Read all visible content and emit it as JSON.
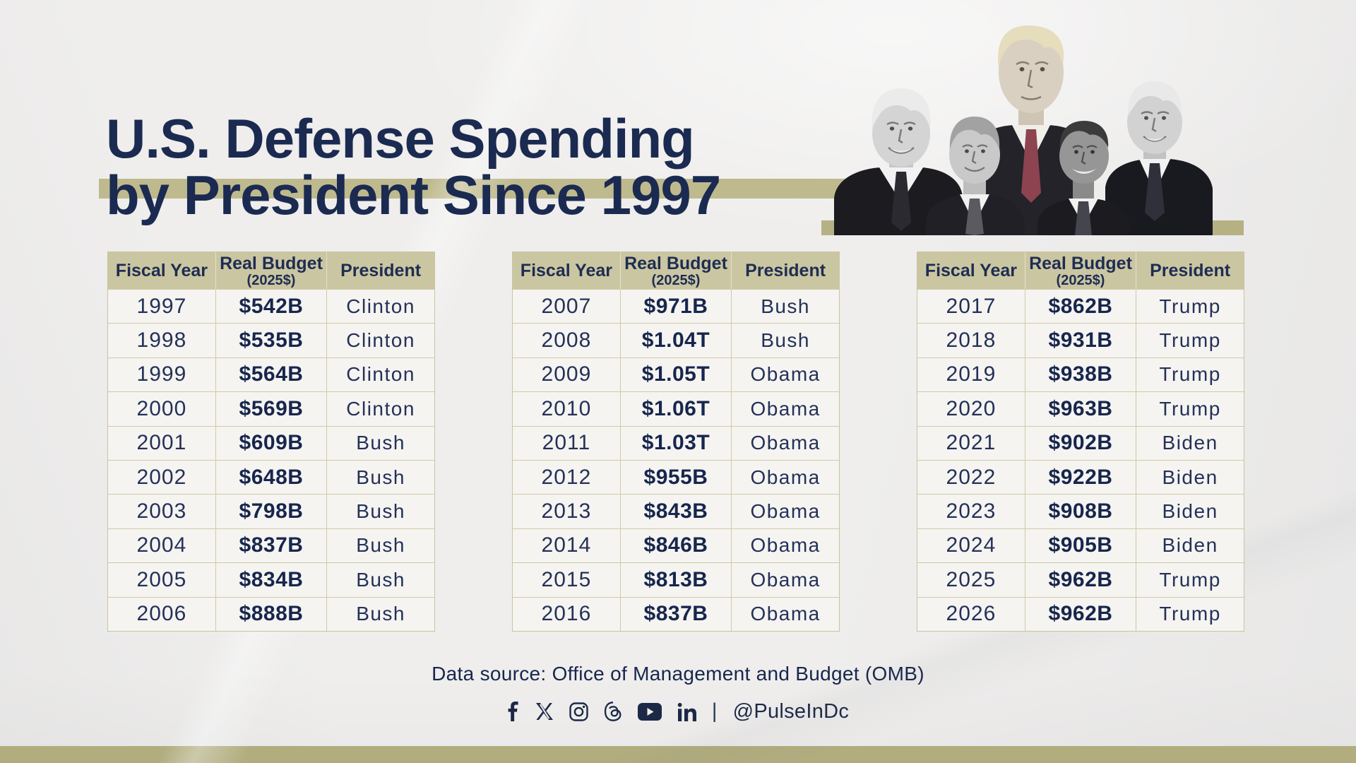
{
  "title": {
    "line1": "U.S. Defense Spending",
    "line2": "by President Since 1997"
  },
  "table_headers": {
    "fiscal_year": "Fiscal Year",
    "real_budget": "Real Budget",
    "real_budget_note": "(2025$)",
    "president": "President"
  },
  "tables": [
    {
      "rows": [
        {
          "year": "1997",
          "budget": "$542B",
          "president": "Clinton"
        },
        {
          "year": "1998",
          "budget": "$535B",
          "president": "Clinton"
        },
        {
          "year": "1999",
          "budget": "$564B",
          "president": "Clinton"
        },
        {
          "year": "2000",
          "budget": "$569B",
          "president": "Clinton"
        },
        {
          "year": "2001",
          "budget": "$609B",
          "president": "Bush"
        },
        {
          "year": "2002",
          "budget": "$648B",
          "president": "Bush"
        },
        {
          "year": "2003",
          "budget": "$798B",
          "president": "Bush"
        },
        {
          "year": "2004",
          "budget": "$837B",
          "president": "Bush"
        },
        {
          "year": "2005",
          "budget": "$834B",
          "president": "Bush"
        },
        {
          "year": "2006",
          "budget": "$888B",
          "president": "Bush"
        }
      ]
    },
    {
      "rows": [
        {
          "year": "2007",
          "budget": "$971B",
          "president": "Bush"
        },
        {
          "year": "2008",
          "budget": "$1.04T",
          "president": "Bush"
        },
        {
          "year": "2009",
          "budget": "$1.05T",
          "president": "Obama"
        },
        {
          "year": "2010",
          "budget": "$1.06T",
          "president": "Obama"
        },
        {
          "year": "2011",
          "budget": "$1.03T",
          "president": "Obama"
        },
        {
          "year": "2012",
          "budget": "$955B",
          "president": "Obama"
        },
        {
          "year": "2013",
          "budget": "$843B",
          "president": "Obama"
        },
        {
          "year": "2014",
          "budget": "$846B",
          "president": "Obama"
        },
        {
          "year": "2015",
          "budget": "$813B",
          "president": "Obama"
        },
        {
          "year": "2016",
          "budget": "$837B",
          "president": "Obama"
        }
      ]
    },
    {
      "rows": [
        {
          "year": "2017",
          "budget": "$862B",
          "president": "Trump"
        },
        {
          "year": "2018",
          "budget": "$931B",
          "president": "Trump"
        },
        {
          "year": "2019",
          "budget": "$938B",
          "president": "Trump"
        },
        {
          "year": "2020",
          "budget": "$963B",
          "president": "Trump"
        },
        {
          "year": "2021",
          "budget": "$902B",
          "president": "Biden"
        },
        {
          "year": "2022",
          "budget": "$922B",
          "president": "Biden"
        },
        {
          "year": "2023",
          "budget": "$908B",
          "president": "Biden"
        },
        {
          "year": "2024",
          "budget": "$905B",
          "president": "Biden"
        },
        {
          "year": "2025",
          "budget": "$962B",
          "president": "Trump"
        },
        {
          "year": "2026",
          "budget": "$962B",
          "president": "Trump"
        }
      ]
    }
  ],
  "footer": {
    "source": "Data source: Office of Management and Budget (OMB)",
    "separator": "|",
    "handle": "@PulseInDc"
  },
  "social_icons": [
    "facebook",
    "x",
    "instagram",
    "threads",
    "youtube",
    "linkedin"
  ],
  "presidents_pictured": [
    "Clinton",
    "Bush",
    "Trump",
    "Obama",
    "Biden"
  ],
  "colors": {
    "navy_text": "#1b2a50",
    "khaki_header": "#cbc6a2",
    "khaki_band": "#bfba8e",
    "khaki_pres_band": "#b5b183",
    "khaki_bottom_strip": "#b1ad7f",
    "row_bg": "#f5f4f1",
    "paper_bg": "#efeeed"
  },
  "chart_data": {
    "type": "table",
    "title": "U.S. Defense Spending by President Since 1997",
    "columns": [
      "Fiscal Year",
      "Real Budget (2025$)",
      "President"
    ],
    "rows": [
      [
        1997,
        "$542B",
        "Clinton"
      ],
      [
        1998,
        "$535B",
        "Clinton"
      ],
      [
        1999,
        "$564B",
        "Clinton"
      ],
      [
        2000,
        "$569B",
        "Clinton"
      ],
      [
        2001,
        "$609B",
        "Bush"
      ],
      [
        2002,
        "$648B",
        "Bush"
      ],
      [
        2003,
        "$798B",
        "Bush"
      ],
      [
        2004,
        "$837B",
        "Bush"
      ],
      [
        2005,
        "$834B",
        "Bush"
      ],
      [
        2006,
        "$888B",
        "Bush"
      ],
      [
        2007,
        "$971B",
        "Bush"
      ],
      [
        2008,
        "$1.04T",
        "Bush"
      ],
      [
        2009,
        "$1.05T",
        "Obama"
      ],
      [
        2010,
        "$1.06T",
        "Obama"
      ],
      [
        2011,
        "$1.03T",
        "Obama"
      ],
      [
        2012,
        "$955B",
        "Obama"
      ],
      [
        2013,
        "$843B",
        "Obama"
      ],
      [
        2014,
        "$846B",
        "Obama"
      ],
      [
        2015,
        "$813B",
        "Obama"
      ],
      [
        2016,
        "$837B",
        "Obama"
      ],
      [
        2017,
        "$862B",
        "Trump"
      ],
      [
        2018,
        "$931B",
        "Trump"
      ],
      [
        2019,
        "$938B",
        "Trump"
      ],
      [
        2020,
        "$963B",
        "Trump"
      ],
      [
        2021,
        "$902B",
        "Biden"
      ],
      [
        2022,
        "$922B",
        "Biden"
      ],
      [
        2023,
        "$908B",
        "Biden"
      ],
      [
        2024,
        "$905B",
        "Biden"
      ],
      [
        2025,
        "$962B",
        "Trump"
      ],
      [
        2026,
        "$962B",
        "Trump"
      ]
    ],
    "source": "Office of Management and Budget (OMB)"
  }
}
